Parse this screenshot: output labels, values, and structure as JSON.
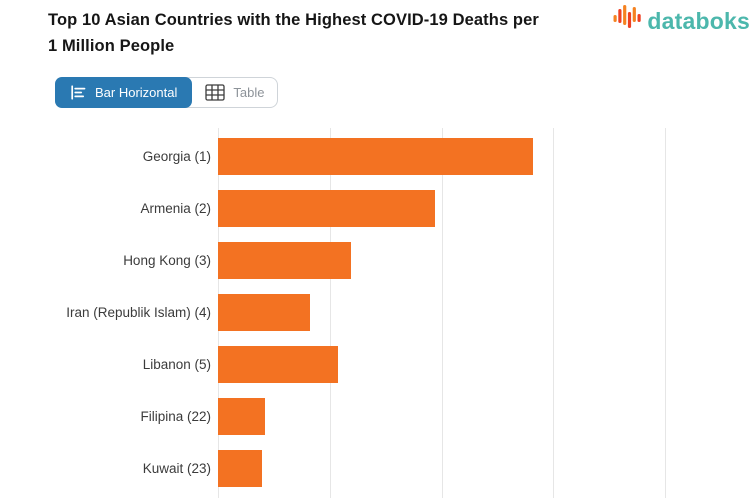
{
  "header": {
    "title_line1": "Top 10 Asian Countries with the Highest COVID-19 Deaths per",
    "title_line2": "1 Million People",
    "brand": {
      "name": "databoks",
      "text_color": "#4cb7ac",
      "icon": "databoks-pulse-bars-icon",
      "icon_colors": [
        "#f58220",
        "#ee4023"
      ]
    }
  },
  "toolbar": {
    "buttons": [
      {
        "label": "Bar Horizontal",
        "icon": "horizontal-bar-chart-icon",
        "active": true
      },
      {
        "label": "Table",
        "icon": "table-grid-icon",
        "active": false
      }
    ],
    "active_bg": "#2a79b2"
  },
  "chart_data": {
    "type": "bar",
    "orientation": "horizontal",
    "title": "Top 10 Asian Countries with the Highest COVID-19 Deaths per 1 Million People",
    "categories": [
      "Georgia (1)",
      "Armenia (2)",
      "Hong Kong (3)",
      "Iran (Republik Islam) (4)",
      "Libanon (5)",
      "Filipina (22)",
      "Kuwait (23)"
    ],
    "values": [
      2818,
      1938,
      1192,
      819,
      1072,
      416,
      392
    ],
    "bar_color": "#f37222",
    "gridline_color": "#e6e6e6",
    "axis_max": 4785,
    "gridline_interval": 1000,
    "grid": true,
    "legend_visible": false,
    "tick_labels_visible": false,
    "xlabel": "",
    "ylabel": ""
  }
}
